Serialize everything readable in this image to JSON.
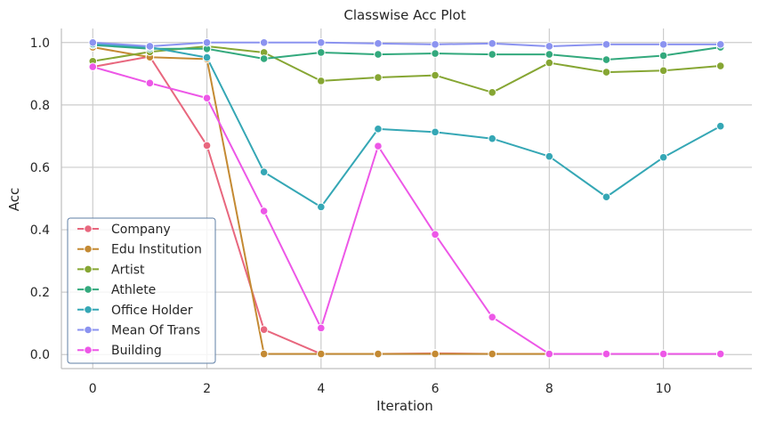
{
  "chart_data": {
    "type": "line",
    "title": "Classwise Acc Plot",
    "xlabel": "Iteration",
    "ylabel": "Acc",
    "x": [
      0,
      1,
      2,
      3,
      4,
      5,
      6,
      7,
      8,
      9,
      10,
      11
    ],
    "xlim": [
      -0.55,
      11.55
    ],
    "ylim": [
      -0.045,
      1.045
    ],
    "xticks": [
      0,
      2,
      4,
      6,
      8,
      10
    ],
    "xtick_labels": [
      "0",
      "2",
      "4",
      "6",
      "8",
      "10"
    ],
    "yticks": [
      0.0,
      0.2,
      0.4,
      0.6,
      0.8,
      1.0
    ],
    "ytick_labels": [
      "0.0",
      "0.2",
      "0.4",
      "0.6",
      "0.8",
      "1.0"
    ],
    "grid": true,
    "legend_position": "lower-left",
    "series": [
      {
        "name": "Company",
        "color": "#e8677e",
        "values": [
          0.922,
          0.955,
          0.67,
          0.08,
          0.002,
          0.002,
          0.004,
          0.002,
          0.002,
          0.002,
          0.002,
          0.002
        ]
      },
      {
        "name": "Edu Institution",
        "color": "#c48a33",
        "values": [
          0.985,
          0.953,
          0.947,
          0.002,
          0.002,
          0.002,
          0.002,
          0.002,
          0.002,
          0.002,
          0.002,
          0.002
        ]
      },
      {
        "name": "Artist",
        "color": "#86a633",
        "values": [
          0.94,
          0.97,
          0.988,
          0.968,
          0.877,
          0.888,
          0.895,
          0.84,
          0.935,
          0.905,
          0.91,
          0.925
        ]
      },
      {
        "name": "Athlete",
        "color": "#33a97d",
        "values": [
          0.992,
          0.98,
          0.98,
          0.948,
          0.968,
          0.962,
          0.965,
          0.962,
          0.962,
          0.945,
          0.958,
          0.985
        ]
      },
      {
        "name": "Office Holder",
        "color": "#35a7b5",
        "values": [
          0.995,
          0.985,
          0.952,
          0.585,
          0.473,
          0.723,
          0.713,
          0.692,
          0.635,
          0.505,
          0.632,
          0.732
        ]
      },
      {
        "name": "Mean Of Trans",
        "color": "#8b93f0",
        "values": [
          1.0,
          0.988,
          1.0,
          1.0,
          1.0,
          0.997,
          0.994,
          0.997,
          0.988,
          0.994,
          0.994,
          0.994
        ]
      },
      {
        "name": "Building",
        "color": "#ed57e7",
        "values": [
          0.922,
          0.87,
          0.822,
          0.46,
          0.085,
          0.668,
          0.385,
          0.12,
          0.002,
          0.002,
          0.002,
          0.002
        ]
      }
    ]
  }
}
